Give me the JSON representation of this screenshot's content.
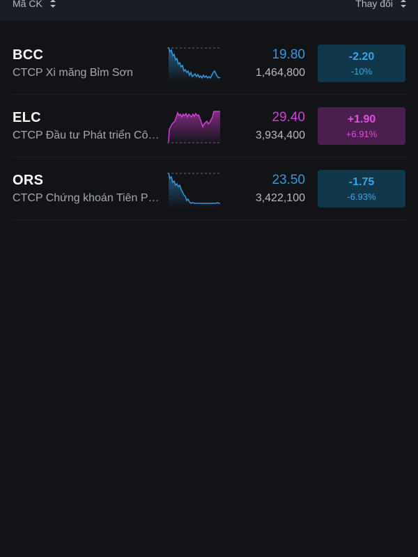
{
  "header": {
    "left_label": "Mã CK",
    "right_label": "Thay đổi"
  },
  "colors": {
    "down": "#2f9be0",
    "up": "#d53fd6",
    "background": "#121317"
  },
  "stocks": [
    {
      "symbol": "BCC",
      "name": "CTCP Xi măng Bỉm Sơn",
      "price": "19.80",
      "volume": "1,464,800",
      "change": "-2.20",
      "change_pct": "-10%",
      "direction": "down"
    },
    {
      "symbol": "ELC",
      "name": "CTCP Đầu tư Phát triển Công nghệ Điện tử Viễn thông",
      "price": "29.40",
      "volume": "3,934,400",
      "change": "+1.90",
      "change_pct": "+6.91%",
      "direction": "up"
    },
    {
      "symbol": "ORS",
      "name": "CTCP Chứng khoán Tiên Phong",
      "price": "23.50",
      "volume": "3,422,100",
      "change": "-1.75",
      "change_pct": "-6.93%",
      "direction": "down"
    }
  ]
}
